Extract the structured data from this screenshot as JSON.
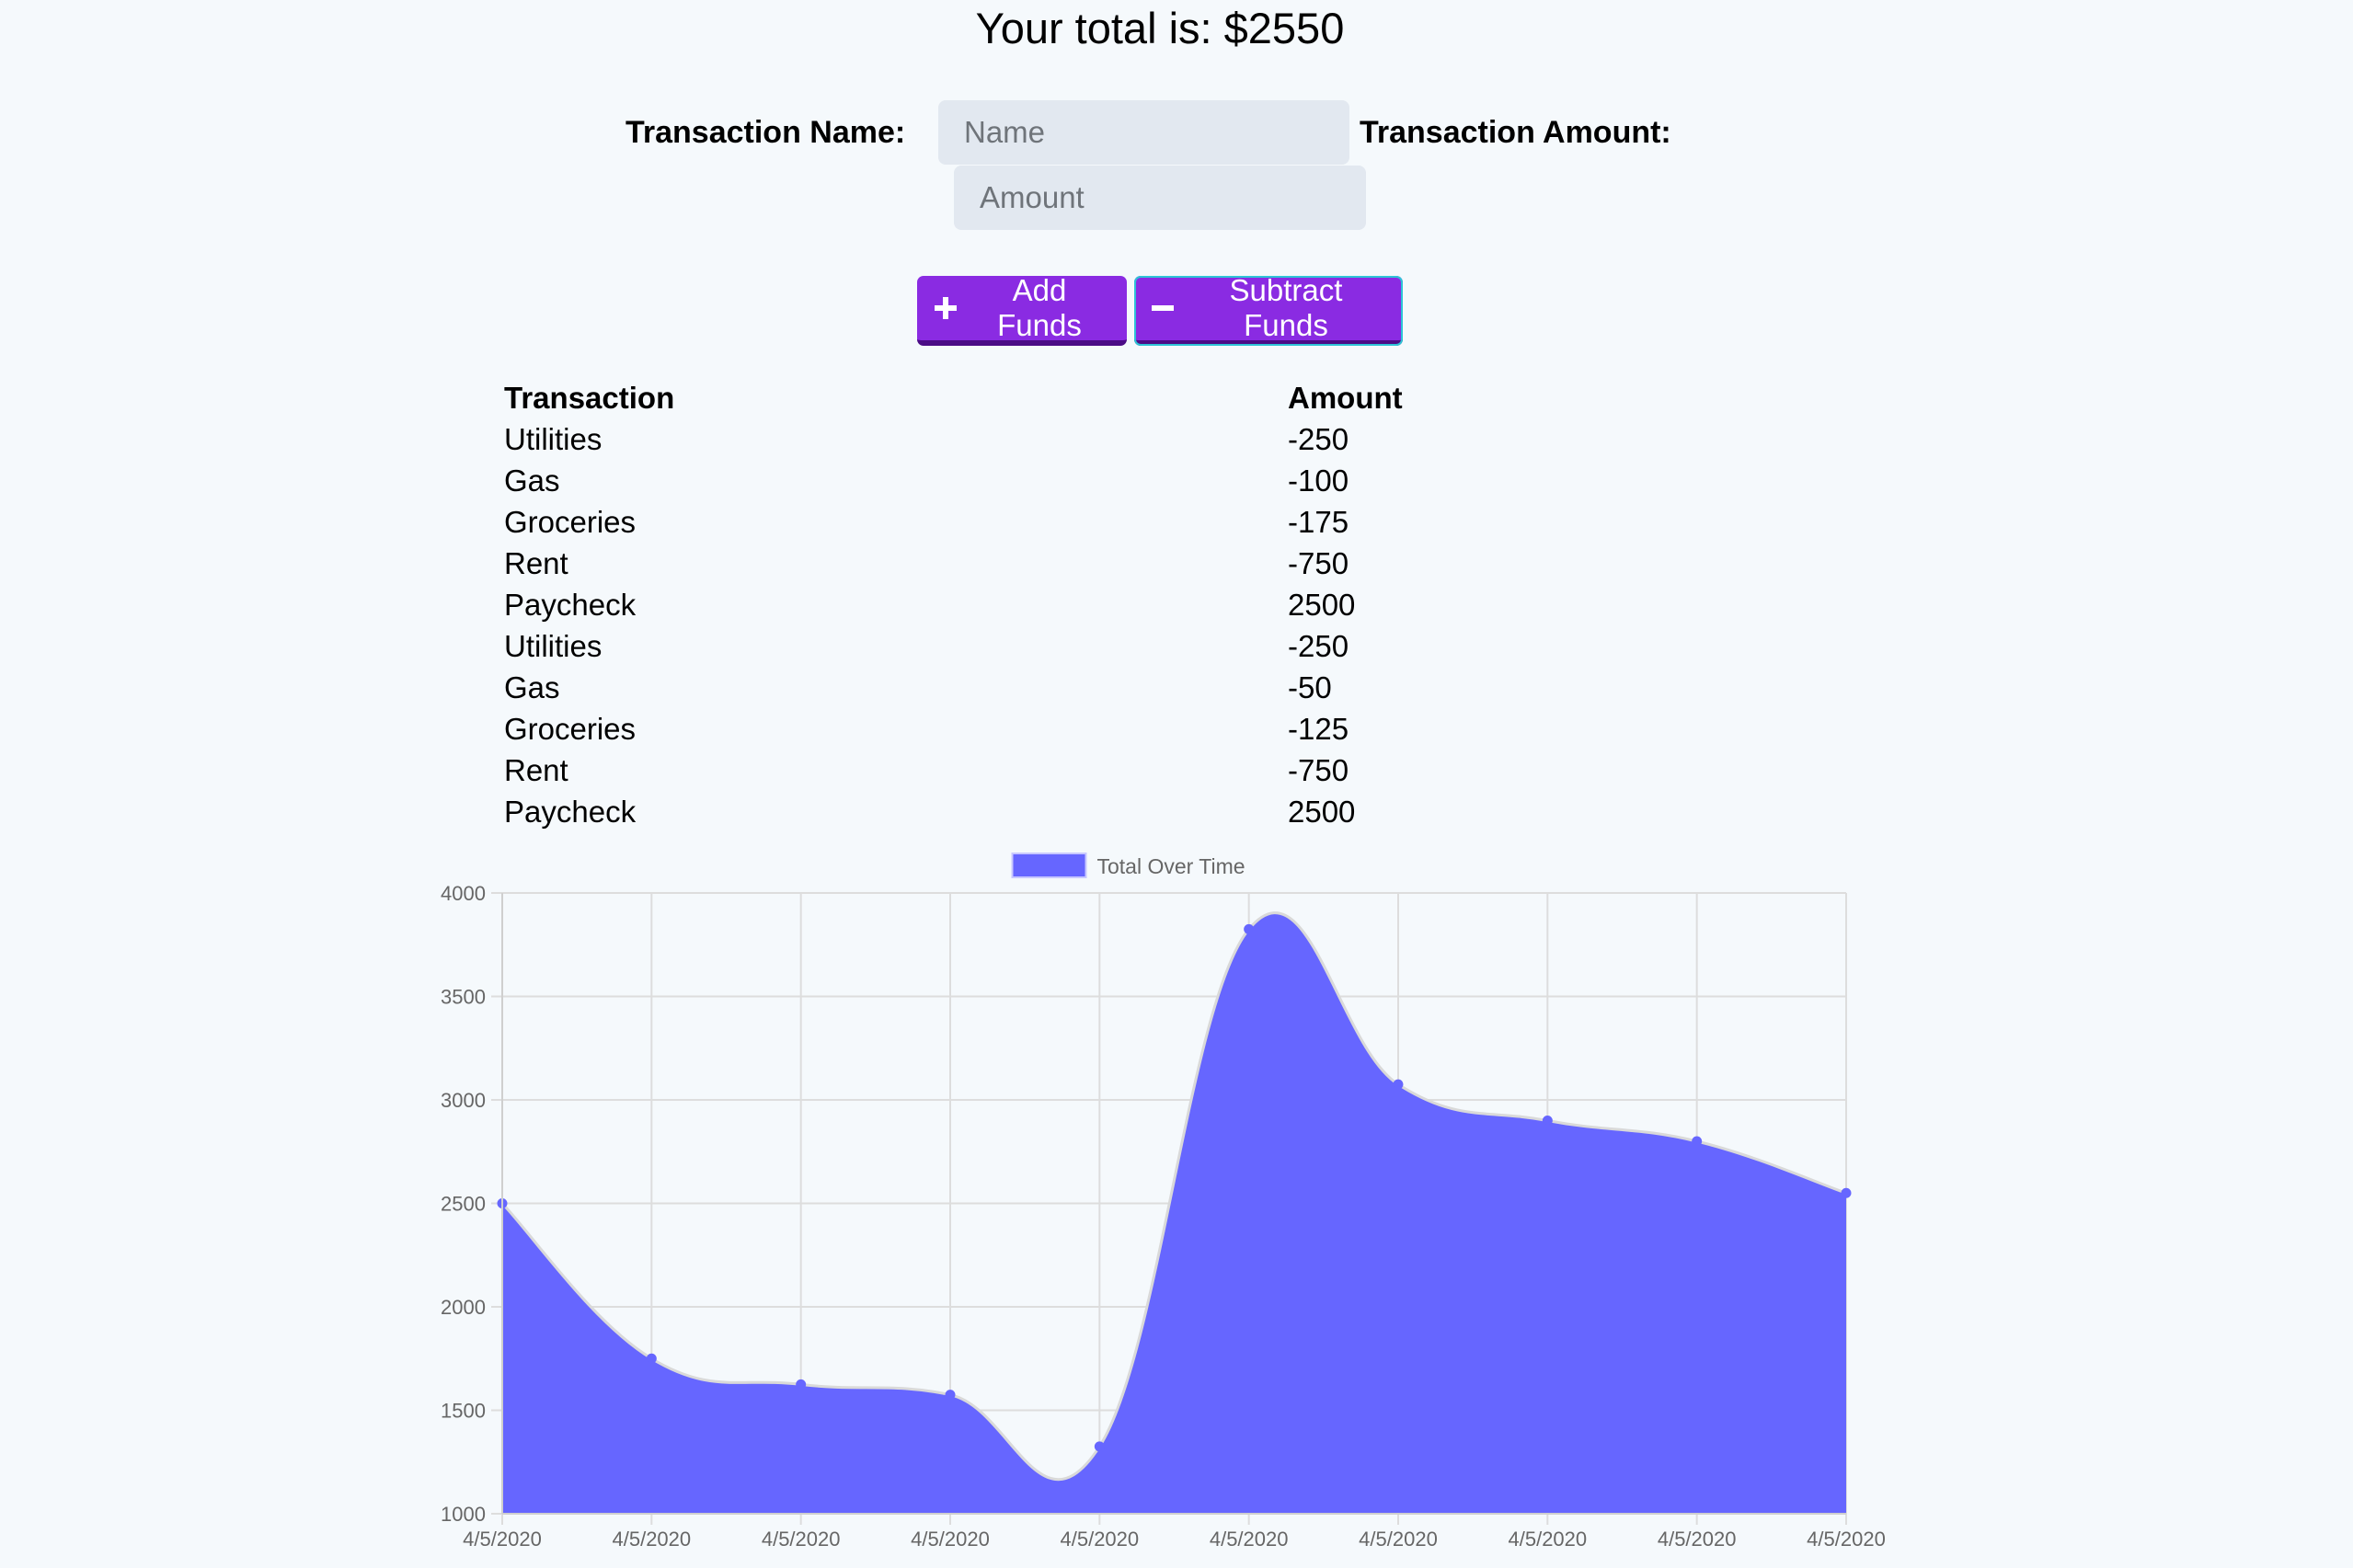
{
  "total": {
    "text": "Your total is: $2550"
  },
  "form": {
    "name_label": "Transaction Name:",
    "name_placeholder": "Name",
    "name_value": "",
    "amount_label": "Transaction Amount:",
    "amount_placeholder": "Amount",
    "amount_value": ""
  },
  "buttons": {
    "add": {
      "label": "Add Funds",
      "icon": "plus-icon"
    },
    "subtract": {
      "label": "Subtract Funds",
      "icon": "minus-icon"
    }
  },
  "table": {
    "headers": [
      "Transaction",
      "Amount"
    ],
    "rows": [
      [
        "Utilities",
        "-250"
      ],
      [
        "Gas",
        "-100"
      ],
      [
        "Groceries",
        "-175"
      ],
      [
        "Rent",
        "-750"
      ],
      [
        "Paycheck",
        "2500"
      ],
      [
        "Utilities",
        "-250"
      ],
      [
        "Gas",
        "-50"
      ],
      [
        "Groceries",
        "-125"
      ],
      [
        "Rent",
        "-750"
      ],
      [
        "Paycheck",
        "2500"
      ]
    ]
  },
  "chart_data": {
    "type": "area",
    "x": [
      "4/5/2020",
      "4/5/2020",
      "4/5/2020",
      "4/5/2020",
      "4/5/2020",
      "4/5/2020",
      "4/5/2020",
      "4/5/2020",
      "4/5/2020",
      "4/5/2020"
    ],
    "series": [
      {
        "name": "Total Over Time",
        "values": [
          2500,
          1750,
          1625,
          1575,
          1325,
          3825,
          3075,
          2900,
          2800,
          2550
        ]
      }
    ],
    "yticks": [
      "4000",
      "3500",
      "3000",
      "2500",
      "2000",
      "1500",
      "1000"
    ],
    "ylim": [
      1000,
      4000
    ],
    "grid": true,
    "legend": "top-center",
    "fill_color": "#6666ff",
    "line_color": "#d9d9d9",
    "grid_color": "#dddddd",
    "tick_color": "#666666"
  }
}
